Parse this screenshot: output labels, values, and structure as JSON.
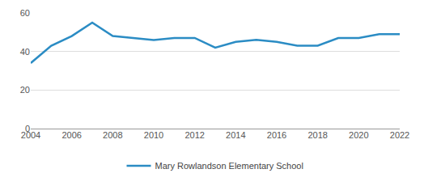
{
  "chart_data": {
    "type": "line",
    "x": [
      2004,
      2005,
      2006,
      2007,
      2008,
      2009,
      2010,
      2011,
      2012,
      2013,
      2014,
      2015,
      2016,
      2017,
      2018,
      2019,
      2020,
      2021,
      2022
    ],
    "series": [
      {
        "name": "Mary Rowlandson Elementary School",
        "color": "#2b8cc4",
        "values": [
          34,
          43,
          48,
          55,
          48,
          47,
          46,
          47,
          47,
          42,
          45,
          46,
          45,
          43,
          43,
          47,
          47,
          49,
          49
        ]
      }
    ],
    "xlim": [
      2004,
      2022
    ],
    "xticks": [
      2004,
      2006,
      2008,
      2010,
      2012,
      2014,
      2016,
      2018,
      2020,
      2022
    ],
    "ylim": [
      0,
      60
    ],
    "yticks": [
      0,
      20,
      40,
      60
    ],
    "grid": true,
    "legend": "bottom"
  }
}
